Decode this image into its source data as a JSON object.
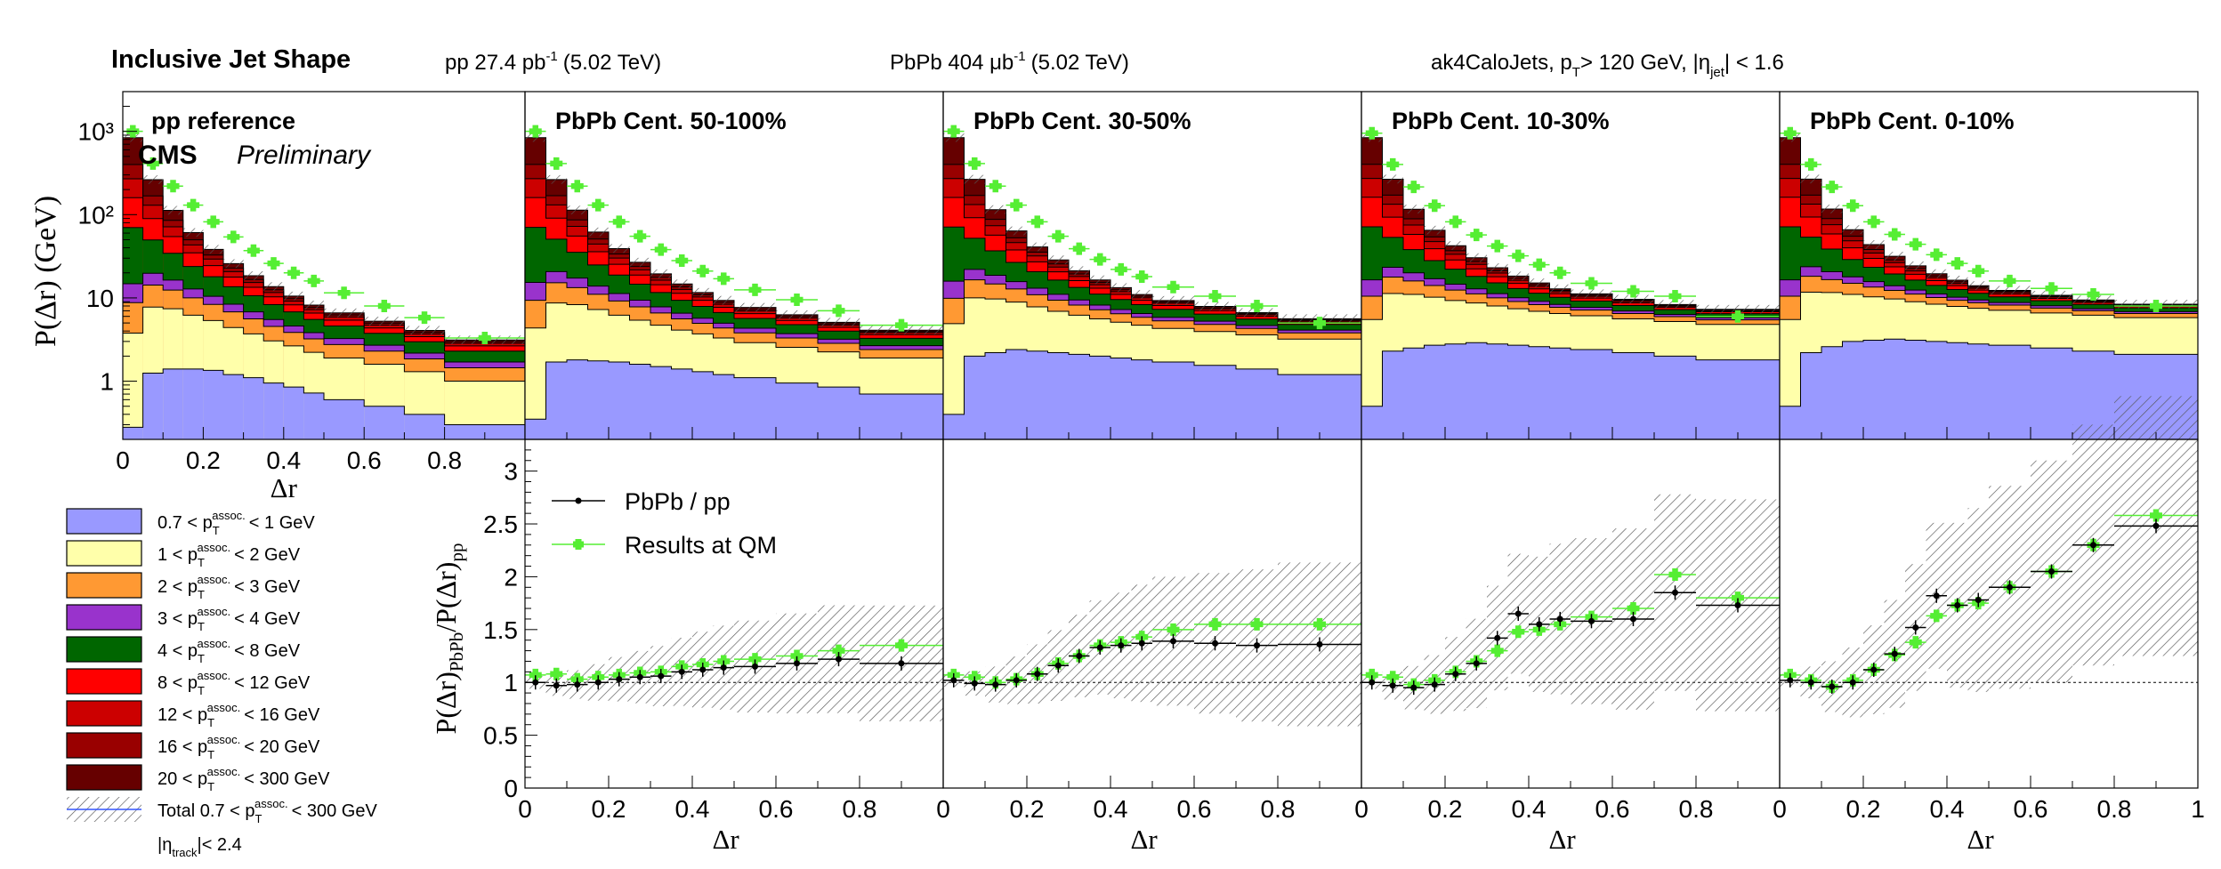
{
  "header": {
    "title": "Inclusive Jet Shape",
    "pp_lumi": "pp 27.4 pb",
    "pp_lumi_exp": "-1",
    "pp_energy": "(5.02 TeV)",
    "pbpb_lumi": "PbPb 404 μb",
    "pbpb_lumi_exp": "-1",
    "pbpb_energy": "(5.02 TeV)",
    "jet_sel_prefix": "ak4CaloJets, p",
    "jet_sel_sub": "T",
    "jet_sel_mid": "> 120 GeV, |η",
    "jet_sel_sub2": "jet",
    "jet_sel_suffix": "| < 1.6"
  },
  "labels": {
    "cms": "CMS",
    "preliminary": "Preliminary",
    "pp_reference": "pp reference",
    "upper_ylabel": "P(Δr) (GeV)",
    "ratio_ylabel_main": "P(Δr)",
    "ratio_ylabel_sub1": "PbPb",
    "ratio_ylabel_mid": "/P(Δr)",
    "ratio_ylabel_sub2": "pp",
    "xlabel": "Δr"
  },
  "panels": [
    {
      "label": "pp reference"
    },
    {
      "label": "PbPb Cent. 50-100%"
    },
    {
      "label": "PbPb Cent. 30-50%"
    },
    {
      "label": "PbPb Cent. 10-30%"
    },
    {
      "label": "PbPb Cent. 0-10%"
    }
  ],
  "ratio_legend": [
    {
      "label": "PbPb / pp",
      "color": "#000000"
    },
    {
      "label": "Results at QM",
      "color": "#55ee33"
    }
  ],
  "stack_legend": [
    {
      "lo": "0.7",
      "hi": "1 GeV",
      "color": "#9999ff"
    },
    {
      "lo": "1",
      "hi": "2 GeV",
      "color": "#ffffaa"
    },
    {
      "lo": "2",
      "hi": "3 GeV",
      "color": "#ff9933"
    },
    {
      "lo": "3",
      "hi": "4 GeV",
      "color": "#9933cc"
    },
    {
      "lo": "4",
      "hi": "8 GeV",
      "color": "#006600"
    },
    {
      "lo": "8",
      "hi": "12 GeV",
      "color": "#ff0000"
    },
    {
      "lo": "12",
      "hi": "16 GeV",
      "color": "#cc0000"
    },
    {
      "lo": "16",
      "hi": "20 GeV",
      "color": "#990000"
    },
    {
      "lo": "20",
      "hi": "300 GeV",
      "color": "#660000"
    }
  ],
  "legend_total": {
    "prefix": "Total 0.7 < p",
    "suffix": "< 300 GeV"
  },
  "legend_track": {
    "prefix": "|η",
    "sub": "track",
    "suffix": "|< 2.4"
  },
  "legend_var": {
    "p": "p",
    "sub": "T",
    "sup": "assoc."
  },
  "chart_data": {
    "type": "bar",
    "bin_edges": [
      0,
      0.05,
      0.1,
      0.15,
      0.2,
      0.25,
      0.3,
      0.35,
      0.4,
      0.45,
      0.5,
      0.6,
      0.7,
      0.8,
      1.0
    ],
    "upper": {
      "yscale": "log",
      "ylim": [
        0.2,
        3000
      ],
      "yticks": [
        "1",
        "10",
        "10²",
        "10³"
      ],
      "pp_xticks": [
        "0",
        "0.2",
        "0.4",
        "0.6",
        "0.8"
      ],
      "stack_series": [
        {
          "name": "0.7 < pT assoc. < 1 GeV",
          "pp": [
            0.28,
            1.25,
            1.4,
            1.4,
            1.35,
            1.2,
            1.1,
            0.95,
            0.85,
            0.72,
            0.6,
            0.5,
            0.4,
            0.3
          ],
          "c50": [
            0.35,
            1.7,
            1.8,
            1.75,
            1.7,
            1.6,
            1.5,
            1.4,
            1.3,
            1.2,
            1.1,
            0.95,
            0.85,
            0.7
          ],
          "c30": [
            0.4,
            2.0,
            2.2,
            2.4,
            2.3,
            2.2,
            2.1,
            2.0,
            1.9,
            1.8,
            1.7,
            1.55,
            1.4,
            1.2
          ],
          "c10": [
            0.5,
            2.3,
            2.5,
            2.7,
            2.8,
            2.9,
            2.8,
            2.7,
            2.6,
            2.5,
            2.4,
            2.2,
            2.0,
            1.8
          ],
          "c0": [
            0.5,
            2.2,
            2.6,
            3.0,
            3.1,
            3.2,
            3.1,
            3.0,
            2.9,
            2.8,
            2.7,
            2.5,
            2.3,
            2.1
          ]
        },
        {
          "name": "1 < pT assoc. < 2 GeV",
          "pp": [
            3.5,
            6.5,
            6.0,
            4.8,
            4.0,
            3.2,
            2.6,
            2.1,
            1.8,
            1.5,
            1.3,
            1.1,
            0.9,
            0.7
          ],
          "c50": [
            4.0,
            7.0,
            6.5,
            5.5,
            4.5,
            3.8,
            3.2,
            2.7,
            2.4,
            2.1,
            1.8,
            1.6,
            1.4,
            1.2
          ],
          "c30": [
            4.5,
            8.0,
            7.5,
            6.5,
            5.5,
            4.7,
            4.1,
            3.6,
            3.2,
            2.9,
            2.6,
            2.4,
            2.2,
            2.0
          ],
          "c10": [
            5.0,
            9.0,
            8.5,
            7.5,
            6.5,
            5.8,
            5.2,
            4.7,
            4.3,
            4.0,
            3.7,
            3.4,
            3.2,
            3.0
          ],
          "c0": [
            5.0,
            9.5,
            9.0,
            8.0,
            7.2,
            6.5,
            5.9,
            5.4,
            5.0,
            4.7,
            4.4,
            4.1,
            3.9,
            3.7
          ]
        },
        {
          "name": "2 < pT assoc. < 3 GeV",
          "pp": [
            5.0,
            6.5,
            5.0,
            3.8,
            3.0,
            2.4,
            1.9,
            1.5,
            1.2,
            1.0,
            0.85,
            0.7,
            0.55,
            0.45
          ],
          "c50": [
            5.0,
            6.5,
            5.0,
            3.8,
            3.0,
            2.4,
            1.9,
            1.5,
            1.25,
            1.05,
            0.9,
            0.75,
            0.6,
            0.5
          ],
          "c30": [
            5.0,
            6.5,
            5.0,
            3.9,
            3.1,
            2.5,
            2.0,
            1.6,
            1.35,
            1.15,
            1.0,
            0.85,
            0.7,
            0.6
          ],
          "c10": [
            5.0,
            6.5,
            5.0,
            3.9,
            3.1,
            2.5,
            2.0,
            1.65,
            1.4,
            1.2,
            1.05,
            0.9,
            0.75,
            0.65
          ],
          "c0": [
            5.0,
            6.5,
            5.0,
            4.0,
            3.2,
            2.6,
            2.1,
            1.7,
            1.45,
            1.25,
            1.1,
            0.95,
            0.8,
            0.7
          ]
        },
        {
          "name": "3 < pT assoc. < 4 GeV",
          "pp": [
            6.0,
            5.5,
            4.0,
            2.8,
            2.1,
            1.6,
            1.2,
            0.95,
            0.75,
            0.6,
            0.5,
            0.4,
            0.32,
            0.25
          ],
          "c50": [
            6.0,
            5.5,
            4.0,
            2.8,
            2.1,
            1.6,
            1.2,
            0.95,
            0.75,
            0.62,
            0.52,
            0.42,
            0.34,
            0.27
          ],
          "c30": [
            6.0,
            5.5,
            4.0,
            2.9,
            2.2,
            1.65,
            1.25,
            1.0,
            0.8,
            0.65,
            0.55,
            0.45,
            0.36,
            0.3
          ],
          "c10": [
            6.0,
            5.5,
            4.0,
            2.9,
            2.2,
            1.65,
            1.25,
            1.0,
            0.8,
            0.66,
            0.56,
            0.46,
            0.38,
            0.32
          ],
          "c0": [
            6.0,
            5.5,
            4.0,
            2.9,
            2.2,
            1.7,
            1.3,
            1.05,
            0.85,
            0.7,
            0.6,
            0.5,
            0.4,
            0.34
          ]
        },
        {
          "name": "4 < pT assoc. < 8 GeV",
          "pp": [
            55,
            30,
            18,
            11,
            7.5,
            5.2,
            3.8,
            2.8,
            2.2,
            1.7,
            1.35,
            1.05,
            0.8,
            0.6
          ],
          "c50": [
            55,
            30,
            18,
            11,
            7.5,
            5.2,
            3.8,
            2.8,
            2.2,
            1.7,
            1.35,
            1.05,
            0.8,
            0.6
          ],
          "c30": [
            55,
            30,
            18,
            11,
            7.5,
            5.3,
            3.9,
            2.9,
            2.3,
            1.8,
            1.45,
            1.15,
            0.9,
            0.7
          ],
          "c10": [
            55,
            30,
            18,
            11,
            7.5,
            5.3,
            3.9,
            2.9,
            2.3,
            1.8,
            1.45,
            1.15,
            0.9,
            0.7
          ],
          "c0": [
            55,
            30,
            18,
            11,
            7.6,
            5.4,
            4.0,
            3.0,
            2.4,
            1.9,
            1.5,
            1.2,
            0.95,
            0.75
          ]
        },
        {
          "name": "8 < pT assoc. < 12 GeV",
          "pp": [
            90,
            40,
            20,
            11,
            6.5,
            4.2,
            2.8,
            2.0,
            1.45,
            1.05,
            0.8,
            0.6,
            0.45,
            0.35
          ],
          "c50": [
            90,
            40,
            20,
            11,
            6.5,
            4.2,
            2.8,
            2.0,
            1.45,
            1.05,
            0.8,
            0.6,
            0.45,
            0.35
          ],
          "c30": [
            90,
            40,
            20,
            11,
            6.5,
            4.2,
            2.8,
            2.0,
            1.45,
            1.05,
            0.8,
            0.6,
            0.45,
            0.35
          ],
          "c10": [
            90,
            40,
            20,
            11,
            6.5,
            4.2,
            2.8,
            2.0,
            1.45,
            1.05,
            0.8,
            0.6,
            0.45,
            0.35
          ],
          "c0": [
            90,
            40,
            20,
            11,
            6.5,
            4.2,
            2.8,
            2.0,
            1.45,
            1.05,
            0.8,
            0.6,
            0.45,
            0.35
          ]
        },
        {
          "name": "12 < pT assoc. < 16 GeV",
          "pp": [
            110,
            40,
            17,
            8.5,
            4.8,
            2.9,
            1.9,
            1.3,
            0.9,
            0.65,
            0.5,
            0.37,
            0.27,
            0.2
          ],
          "c50": [
            110,
            40,
            17,
            8.5,
            4.8,
            2.9,
            1.9,
            1.3,
            0.9,
            0.65,
            0.5,
            0.37,
            0.27,
            0.2
          ],
          "c30": [
            110,
            40,
            17,
            8.5,
            4.8,
            2.9,
            1.9,
            1.3,
            0.9,
            0.65,
            0.5,
            0.37,
            0.27,
            0.2
          ],
          "c10": [
            110,
            40,
            17,
            8.5,
            4.8,
            2.9,
            1.9,
            1.3,
            0.9,
            0.65,
            0.5,
            0.37,
            0.27,
            0.2
          ],
          "c0": [
            110,
            40,
            17,
            8.5,
            4.8,
            2.9,
            1.9,
            1.3,
            0.9,
            0.65,
            0.5,
            0.37,
            0.27,
            0.2
          ]
        },
        {
          "name": "16 < pT assoc. < 20 GeV",
          "pp": [
            130,
            38,
            14,
            6.5,
            3.5,
            2.1,
            1.35,
            0.9,
            0.62,
            0.45,
            0.33,
            0.25,
            0.18,
            0.13
          ],
          "c50": [
            130,
            38,
            14,
            6.5,
            3.5,
            2.1,
            1.35,
            0.9,
            0.62,
            0.45,
            0.33,
            0.25,
            0.18,
            0.13
          ],
          "c30": [
            130,
            38,
            14,
            6.5,
            3.5,
            2.1,
            1.35,
            0.9,
            0.62,
            0.45,
            0.33,
            0.25,
            0.18,
            0.13
          ],
          "c10": [
            130,
            38,
            14,
            6.5,
            3.5,
            2.1,
            1.35,
            0.9,
            0.62,
            0.45,
            0.33,
            0.25,
            0.18,
            0.13
          ],
          "c0": [
            130,
            38,
            14,
            6.5,
            3.5,
            2.1,
            1.35,
            0.9,
            0.62,
            0.45,
            0.33,
            0.25,
            0.18,
            0.13
          ]
        },
        {
          "name": "20 < pT assoc. < 300 GeV",
          "pp": [
            440,
            95,
            27,
            11,
            5.5,
            3.0,
            1.8,
            1.15,
            0.75,
            0.52,
            0.38,
            0.28,
            0.2,
            0.14
          ],
          "c50": [
            440,
            95,
            27,
            11,
            5.5,
            3.0,
            1.8,
            1.15,
            0.75,
            0.52,
            0.38,
            0.28,
            0.2,
            0.14
          ],
          "c30": [
            440,
            95,
            27,
            11,
            5.5,
            3.0,
            1.8,
            1.15,
            0.75,
            0.52,
            0.38,
            0.28,
            0.2,
            0.14
          ],
          "c10": [
            440,
            95,
            27,
            11,
            5.5,
            3.0,
            1.8,
            1.15,
            0.75,
            0.52,
            0.38,
            0.28,
            0.2,
            0.14
          ],
          "c0": [
            440,
            95,
            27,
            11,
            5.5,
            3.0,
            1.8,
            1.15,
            0.75,
            0.52,
            0.38,
            0.28,
            0.2,
            0.14
          ]
        }
      ],
      "qm_points": {
        "pp": [
          1000,
          410,
          220,
          130,
          82,
          54,
          37,
          26,
          20,
          16,
          11.5,
          8.0,
          5.8,
          3.3
        ],
        "c50": [
          1000,
          410,
          220,
          130,
          82,
          55,
          38,
          28,
          21,
          17,
          12.5,
          9.5,
          7.0,
          4.7
        ],
        "c30": [
          1000,
          410,
          220,
          130,
          82,
          55,
          39,
          29,
          22,
          18,
          13.5,
          10.5,
          8.0,
          5.0
        ],
        "c10": [
          950,
          400,
          215,
          128,
          82,
          57,
          42,
          32,
          25,
          20,
          15,
          12,
          10.5,
          6.0
        ],
        "c0": [
          950,
          400,
          215,
          128,
          82,
          58,
          44,
          33,
          26,
          21,
          16,
          13,
          11,
          8.0
        ]
      }
    },
    "ratio": {
      "ylim": [
        0,
        3.3
      ],
      "yticks": [
        "0",
        "0.5",
        "1",
        "1.5",
        "2",
        "2.5",
        "3"
      ],
      "xticks_first": [
        "0",
        "0.2",
        "0.4",
        "0.6",
        "0.8"
      ],
      "xticks_last": [
        "0",
        "0.2",
        "0.4",
        "0.6",
        "0.8",
        "1"
      ],
      "reference_line": 1,
      "pbpb_pp": {
        "c50": [
          1.0,
          0.97,
          0.98,
          1.0,
          1.03,
          1.05,
          1.06,
          1.1,
          1.12,
          1.14,
          1.15,
          1.18,
          1.22,
          1.18
        ],
        "c30": [
          1.02,
          0.99,
          0.98,
          1.02,
          1.08,
          1.16,
          1.25,
          1.33,
          1.35,
          1.37,
          1.39,
          1.37,
          1.35,
          1.36
        ],
        "c10": [
          1.0,
          0.97,
          0.95,
          0.98,
          1.08,
          1.18,
          1.42,
          1.65,
          1.55,
          1.6,
          1.58,
          1.6,
          1.85,
          1.73
        ],
        "c0": [
          1.02,
          1.0,
          0.96,
          1.0,
          1.12,
          1.27,
          1.52,
          1.82,
          1.73,
          1.78,
          1.9,
          2.05,
          2.3,
          2.48
        ]
      },
      "qm": {
        "c50": [
          1.07,
          1.08,
          1.03,
          1.05,
          1.07,
          1.09,
          1.1,
          1.15,
          1.17,
          1.2,
          1.22,
          1.25,
          1.3,
          1.35
        ],
        "c30": [
          1.07,
          1.05,
          1.0,
          1.03,
          1.08,
          1.18,
          1.25,
          1.35,
          1.38,
          1.43,
          1.5,
          1.55,
          1.55,
          1.55
        ],
        "c10": [
          1.07,
          1.05,
          0.98,
          1.02,
          1.1,
          1.2,
          1.3,
          1.48,
          1.5,
          1.55,
          1.62,
          1.7,
          2.02,
          1.8
        ],
        "c0": [
          1.07,
          1.02,
          0.96,
          1.02,
          1.12,
          1.26,
          1.38,
          1.63,
          1.73,
          1.75,
          1.9,
          2.05,
          2.3,
          2.58
        ]
      }
    }
  }
}
